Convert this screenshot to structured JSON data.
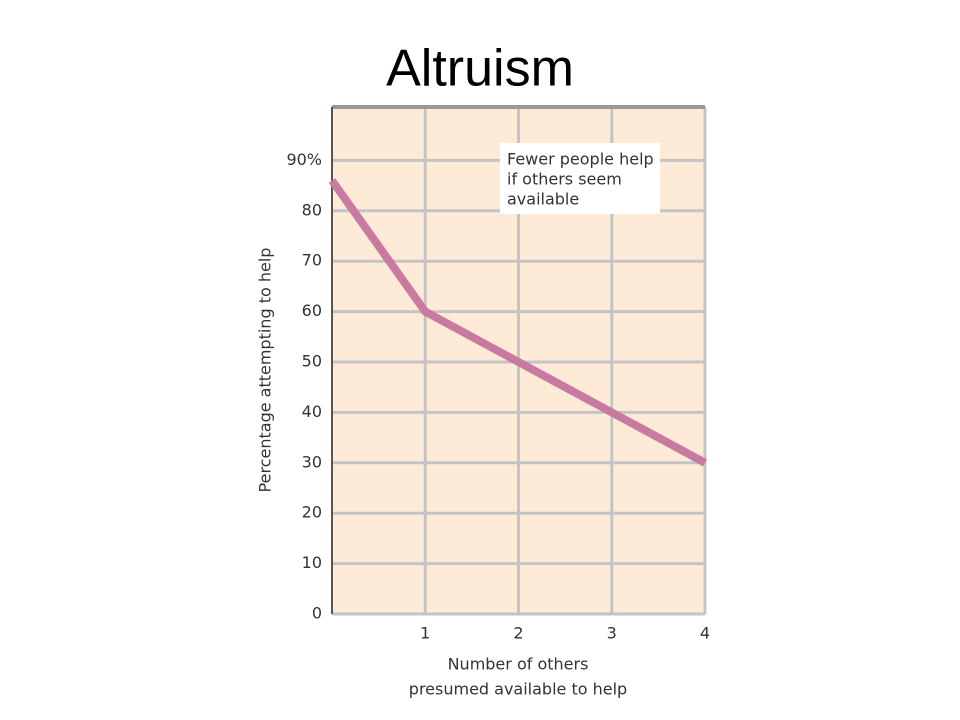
{
  "chart_data": {
    "type": "line",
    "title": "Altruism",
    "x_label": [
      "Number of others",
      "presumed available to help"
    ],
    "y_label": "Percentage attempting to help",
    "annotation": [
      "Fewer people help",
      "if others seem",
      "available"
    ],
    "x": [
      0,
      1,
      2,
      3,
      4
    ],
    "values": [
      86,
      60,
      50,
      40,
      30
    ],
    "color": "#c97aa0",
    "xlim": [
      0,
      4
    ],
    "xticks": [
      1,
      2,
      3,
      4
    ],
    "ylim": [
      0,
      100
    ],
    "yticks": [
      0,
      10,
      20,
      30,
      40,
      50,
      60,
      70,
      {
        "value": 80,
        "label": "80"
      },
      {
        "value": 90,
        "label": "90%"
      }
    ],
    "grid": true
  }
}
